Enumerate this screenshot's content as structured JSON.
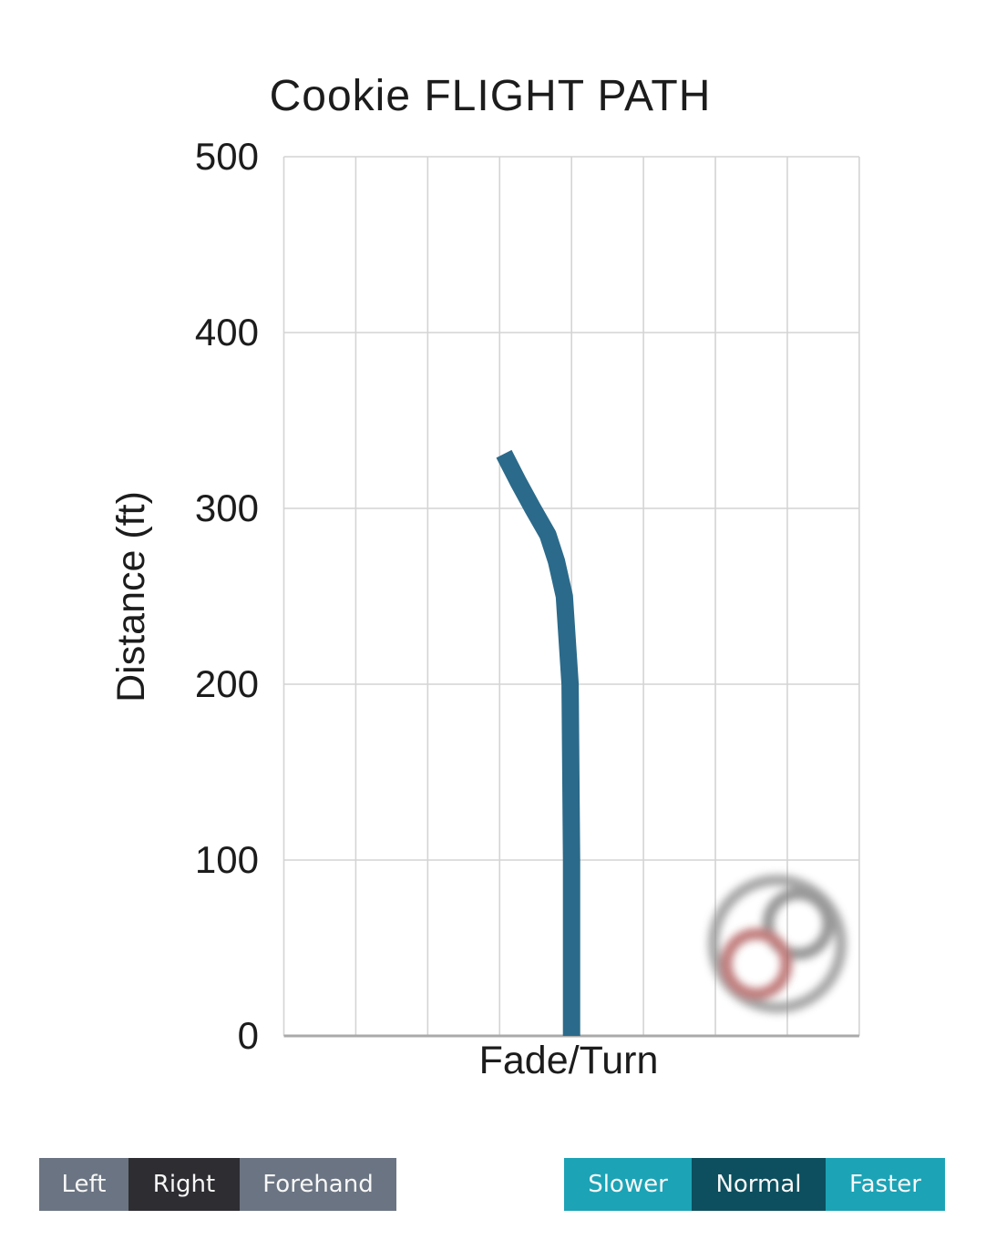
{
  "chart": {
    "title": "Cookie FLIGHT PATH",
    "y_axis_label": "Distance (ft)",
    "x_axis_label": "Fade/Turn"
  },
  "chart_data": {
    "type": "line",
    "title": "Cookie FLIGHT PATH",
    "xlabel": "Fade/Turn",
    "ylabel": "Distance (ft)",
    "ylim": [
      0,
      500
    ],
    "y_ticks": [
      0,
      100,
      200,
      300,
      400,
      500
    ],
    "x_tick_labels": [],
    "x_gridline_count": 9,
    "grid": true,
    "legend": false,
    "series": [
      {
        "name": "Cookie flight path (Right hand, Normal speed)",
        "color": "#2b6a8a",
        "stroke_width_px": 19,
        "point_format": "[lateral_offset_in_grid_columns, distance_ft]",
        "points": [
          [
            0,
            0
          ],
          [
            0,
            100
          ],
          [
            -0.02,
            200
          ],
          [
            -0.1,
            250
          ],
          [
            -0.21,
            270
          ],
          [
            -0.33,
            285
          ],
          [
            -0.54,
            300
          ],
          [
            -0.74,
            315
          ],
          [
            -0.94,
            331
          ]
        ],
        "max_distance_ft": 331
      }
    ]
  },
  "controls": {
    "handedness": [
      {
        "label": "Left",
        "selected": false
      },
      {
        "label": "Right",
        "selected": true
      },
      {
        "label": "Forehand",
        "selected": false
      }
    ],
    "speed": [
      {
        "label": "Slower",
        "selected": false
      },
      {
        "label": "Normal",
        "selected": true
      },
      {
        "label": "Faster",
        "selected": false
      }
    ]
  },
  "logo": {
    "name": "infinite-discs-logo",
    "ring_color": "#8f8f8f",
    "loop_top_color": "#7d7d7d",
    "loop_bottom_color": "#b15b5b"
  },
  "colors": {
    "flight_path": "#2b6a8a",
    "grid_line": "#d4d4d4",
    "axis_line": "#aaaaaa",
    "btn_gray": "#6b7482",
    "btn_gray_selected": "#2d2d32",
    "btn_teal": "#1ca3b6",
    "btn_teal_selected": "#0d4f5e",
    "text": "#1c1c1c"
  }
}
